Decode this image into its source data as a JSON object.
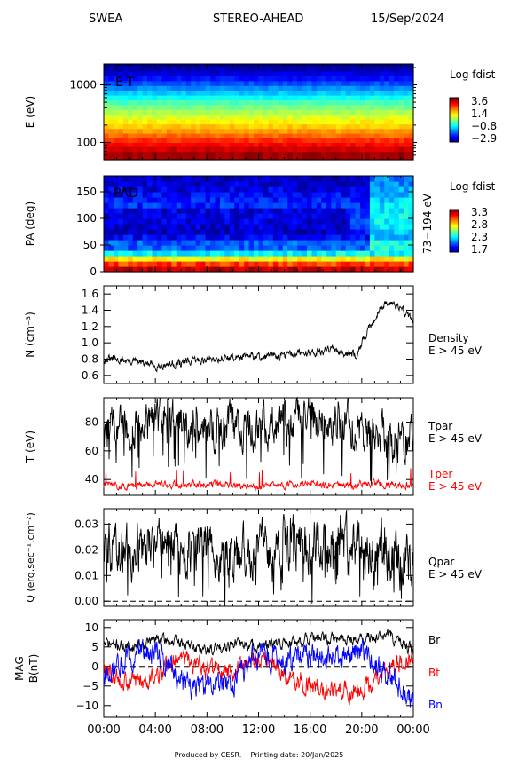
{
  "header": {
    "left": "SWEA",
    "center": "STEREO-AHEAD",
    "right": "15/Sep/2024"
  },
  "footer": {
    "produced": "Produced by CESR.",
    "printing": "Printing date: 20/Jan/2025"
  },
  "chart_data": [
    {
      "type": "heatmap",
      "panel": "energy-time",
      "label": "E-T",
      "ylabel": "E (eV)",
      "yscale": "log",
      "ylim": [
        50,
        2300
      ],
      "yticks": [
        "100",
        "1000"
      ],
      "x_hours": [
        0,
        24
      ],
      "colorbar": {
        "title": "Log fdist",
        "ticks": [
          "3.6",
          "1.4",
          "−0.8",
          "−2.9"
        ],
        "min": -2.9,
        "max": 3.6
      },
      "energy_levels": [
        60,
        70,
        85,
        100,
        120,
        145,
        175,
        210,
        255,
        310,
        375,
        455,
        550,
        665,
        805,
        975,
        1180,
        1430,
        1730,
        2100
      ],
      "log_fdist_by_energy": [
        3.4,
        3.1,
        2.8,
        2.5,
        2.1,
        1.8,
        1.5,
        1.2,
        0.9,
        0.6,
        0.3,
        0.0,
        -0.4,
        -0.8,
        -1.2,
        -1.6,
        -2.0,
        -2.3,
        -2.6,
        -2.9
      ]
    },
    {
      "type": "heatmap",
      "panel": "pitch-angle",
      "label": "PAD",
      "ylabel": "PA (deg)",
      "ylim": [
        0,
        180
      ],
      "yticks": [
        "0",
        "50",
        "100",
        "150"
      ],
      "energy_range_label": "73−194 eV",
      "colorbar": {
        "title": "Log fdist",
        "ticks": [
          "3.3",
          "2.8",
          "2.3",
          "1.7"
        ],
        "min": 1.7,
        "max": 3.3
      }
    },
    {
      "type": "line",
      "panel": "density",
      "ylabel": "N (cm⁻³)",
      "ylim": [
        0.5,
        1.7
      ],
      "yticks": [
        "0.6",
        "0.8",
        "1.0",
        "1.2",
        "1.4",
        "1.6"
      ],
      "x_hours": [
        0,
        2,
        4,
        6,
        8,
        10,
        12,
        14,
        16,
        18,
        19.5,
        20.5,
        21.5,
        22.5,
        23.5,
        24
      ],
      "series": [
        {
          "name": "Density",
          "y": [
            0.8,
            0.78,
            0.72,
            0.75,
            0.8,
            0.82,
            0.83,
            0.85,
            0.88,
            0.92,
            0.85,
            1.15,
            1.45,
            1.5,
            1.35,
            1.28
          ],
          "color": "#000000",
          "spread": 0.04
        }
      ],
      "legend": [
        "Density",
        "E > 45 eV"
      ]
    },
    {
      "type": "line",
      "panel": "temperature",
      "ylabel": "T (eV)",
      "ylim": [
        29,
        97
      ],
      "yticks": [
        "40",
        "60",
        "80"
      ],
      "x_hours": [
        0,
        2,
        4,
        6,
        8,
        10,
        12,
        14,
        16,
        18,
        20,
        22,
        24
      ],
      "series": [
        {
          "name": "Tpar",
          "y": [
            78,
            75,
            82,
            78,
            76,
            77,
            76,
            82,
            84,
            82,
            72,
            66,
            70
          ],
          "color": "#000000",
          "spread": 12
        },
        {
          "name": "Tper",
          "y": [
            36,
            36,
            37,
            36,
            37,
            36,
            35,
            36,
            37,
            35,
            37,
            37,
            36
          ],
          "color": "#ff0000",
          "spread": 2
        }
      ],
      "legend": [
        "Tpar",
        "E > 45 eV",
        "Tper",
        "E > 45 eV"
      ]
    },
    {
      "type": "line",
      "panel": "heat-flux",
      "ylabel": "Q (erg.sec⁻¹.cm⁻²)",
      "ylim": [
        -0.002,
        0.036
      ],
      "yticks": [
        "0.00",
        "0.01",
        "0.02",
        "0.03"
      ],
      "x_hours": [
        0,
        2,
        4,
        6,
        8,
        10,
        12,
        14,
        16,
        18,
        20,
        22,
        24
      ],
      "series": [
        {
          "name": "Qpar",
          "y": [
            0.022,
            0.02,
            0.026,
            0.02,
            0.022,
            0.018,
            0.021,
            0.022,
            0.02,
            0.025,
            0.02,
            0.018,
            0.015
          ],
          "color": "#000000",
          "spread": 0.008
        }
      ],
      "legend": [
        "Qpar",
        "E > 45 eV"
      ]
    },
    {
      "type": "line",
      "panel": "magnetic-field",
      "ylabel": "MAG B(nT)",
      "ylim": [
        -13,
        12
      ],
      "yticks": [
        "−10",
        "−5",
        "0",
        "5",
        "10"
      ],
      "x_hours": [
        0,
        2,
        4,
        6,
        8,
        10,
        12,
        14,
        16,
        18,
        20,
        22,
        24
      ],
      "series": [
        {
          "name": "Br",
          "y": [
            6,
            5,
            7,
            6,
            4,
            6,
            5,
            6,
            7,
            7,
            7,
            8,
            4
          ],
          "color": "#000000",
          "spread": 1.2
        },
        {
          "name": "Bt",
          "y": [
            -1,
            -4,
            -3,
            3,
            -1,
            -2,
            2,
            -2,
            -5,
            -6,
            -6,
            0,
            2
          ],
          "color": "#ff0000",
          "spread": 2
        },
        {
          "name": "Bn",
          "y": [
            -2,
            3,
            4,
            -4,
            -6,
            -4,
            3,
            1,
            3,
            2,
            4,
            -3,
            -8
          ],
          "color": "#0000ff",
          "spread": 2.5
        }
      ],
      "legend": [
        "Br",
        "Bt",
        "Bn"
      ]
    }
  ],
  "xaxis": {
    "ticks": [
      "00:00",
      "04:00",
      "08:00",
      "12:00",
      "16:00",
      "20:00",
      "00:00"
    ],
    "range_hours": [
      0,
      24
    ]
  }
}
